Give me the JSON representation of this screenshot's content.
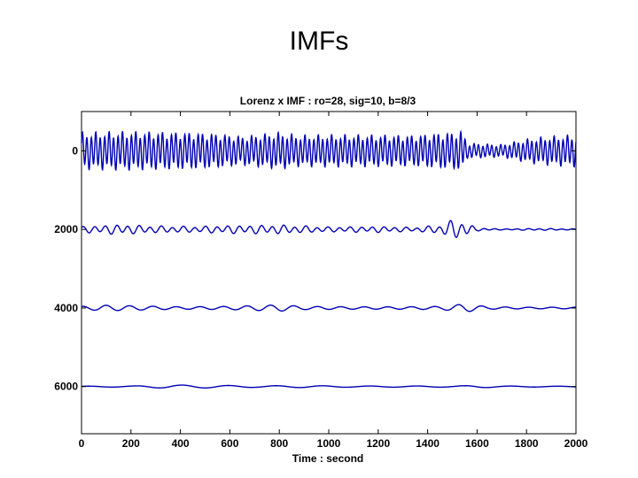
{
  "slide": {
    "title": "IMFs"
  },
  "chart_data": {
    "type": "line",
    "title": "Lorenz x IMF : ro=28, sig=10, b=8/3",
    "xlabel": "Time : second",
    "ylabel": "",
    "xlim": [
      0,
      2000
    ],
    "ylim": [
      -1000,
      7200
    ],
    "y_inverted": true,
    "x_ticks": [
      "0",
      "200",
      "400",
      "600",
      "800",
      "1000",
      "1200",
      "1400",
      "1600",
      "1800",
      "2000"
    ],
    "y_ticks": [
      {
        "value": 0,
        "label": "0"
      },
      {
        "value": 2000,
        "label": "2000"
      },
      {
        "value": 4000,
        "label": "4000"
      },
      {
        "value": 6000,
        "label": "6000"
      }
    ],
    "series_color": "#0000b4",
    "series": [
      {
        "offset": 0,
        "profile": [
          [
            0,
            380
          ],
          [
            200,
            400
          ],
          [
            450,
            380
          ],
          [
            560,
            350
          ],
          [
            650,
            300
          ],
          [
            800,
            380
          ],
          [
            880,
            320
          ],
          [
            1000,
            330
          ],
          [
            1200,
            330
          ],
          [
            1350,
            320
          ],
          [
            1430,
            360
          ],
          [
            1500,
            380
          ],
          [
            1540,
            420
          ],
          [
            1560,
            160
          ],
          [
            1700,
            130
          ],
          [
            1820,
            260
          ],
          [
            1900,
            300
          ],
          [
            2000,
            330
          ]
        ],
        "components": [
          {
            "period": 18,
            "phase": 0.3,
            "weight": 1.0
          },
          {
            "period": 53,
            "phase": 1.1,
            "weight": 0.25
          }
        ]
      },
      {
        "offset": 2000,
        "profile": [
          [
            0,
            60
          ],
          [
            150,
            100
          ],
          [
            300,
            70
          ],
          [
            450,
            60
          ],
          [
            600,
            80
          ],
          [
            800,
            90
          ],
          [
            1000,
            50
          ],
          [
            1200,
            60
          ],
          [
            1350,
            40
          ],
          [
            1450,
            90
          ],
          [
            1500,
            190
          ],
          [
            1550,
            150
          ],
          [
            1600,
            30
          ],
          [
            1700,
            10
          ],
          [
            1850,
            20
          ],
          [
            2000,
            10
          ]
        ],
        "components": [
          {
            "period": 45,
            "phase": 0.5,
            "weight": 1.0
          },
          {
            "period": 83,
            "phase": 2.0,
            "weight": 0.3
          }
        ]
      },
      {
        "offset": 4000,
        "profile": [
          [
            0,
            40
          ],
          [
            100,
            70
          ],
          [
            250,
            50
          ],
          [
            400,
            30
          ],
          [
            600,
            40
          ],
          [
            800,
            80
          ],
          [
            900,
            40
          ],
          [
            1100,
            30
          ],
          [
            1300,
            30
          ],
          [
            1450,
            40
          ],
          [
            1550,
            100
          ],
          [
            1650,
            30
          ],
          [
            1800,
            20
          ],
          [
            2000,
            20
          ]
        ],
        "components": [
          {
            "period": 95,
            "phase": 1.3,
            "weight": 1.0
          }
        ]
      },
      {
        "offset": 6000,
        "profile": [
          [
            0,
            10
          ],
          [
            200,
            15
          ],
          [
            350,
            40
          ],
          [
            500,
            35
          ],
          [
            700,
            20
          ],
          [
            900,
            25
          ],
          [
            1100,
            15
          ],
          [
            1300,
            15
          ],
          [
            1500,
            15
          ],
          [
            1600,
            30
          ],
          [
            1700,
            15
          ],
          [
            1900,
            10
          ],
          [
            2000,
            10
          ]
        ],
        "components": [
          {
            "period": 190,
            "phase": 0.7,
            "weight": 1.0
          }
        ]
      }
    ]
  }
}
